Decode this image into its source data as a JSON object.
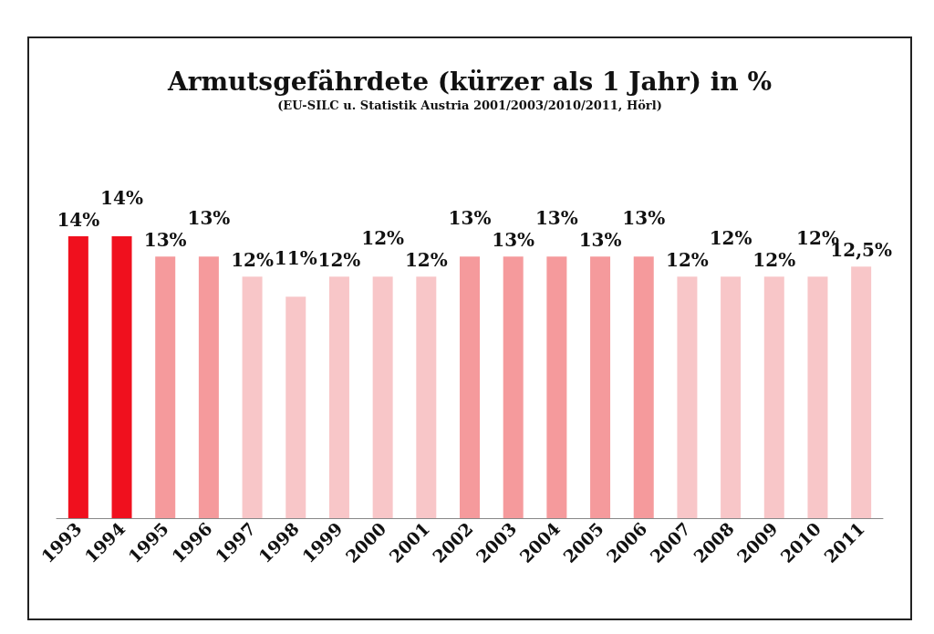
{
  "chart_data": {
    "type": "bar",
    "title": "Armutsgefährdete (kürzer als 1 Jahr) in %",
    "subtitle": "(EU-SILC u. Statistik Austria 2001/2003/2010/2011, Hörl)",
    "categories": [
      "1993",
      "1994",
      "1995",
      "1996",
      "1997",
      "1998",
      "1999",
      "2000",
      "2001",
      "2002",
      "2003",
      "2004",
      "2005",
      "2006",
      "2007",
      "2008",
      "2009",
      "2010",
      "2011"
    ],
    "values": [
      14,
      14,
      13,
      13,
      12,
      11,
      12,
      12,
      12,
      13,
      13,
      13,
      13,
      13,
      12,
      12,
      12,
      12,
      12.5
    ],
    "colors": [
      "#f0101e",
      "#f0101e",
      "#f59a9c",
      "#f59a9c",
      "#f8c6c8",
      "#f8c6c8",
      "#f8c6c8",
      "#f8c6c8",
      "#f8c6c8",
      "#f59a9c",
      "#f59a9c",
      "#f59a9c",
      "#f59a9c",
      "#f59a9c",
      "#f8c6c8",
      "#f8c6c8",
      "#f8c6c8",
      "#f8c6c8",
      "#f8c6c8"
    ],
    "value_labels": [
      "14%",
      "14%",
      "13%",
      "13%",
      "12%",
      "11%",
      "12%",
      "12%",
      "12%",
      "13%",
      "13%",
      "13%",
      "13%",
      "13%",
      "12%",
      "12%",
      "12%",
      "12%",
      "12,5%"
    ],
    "data_labels": false
  }
}
